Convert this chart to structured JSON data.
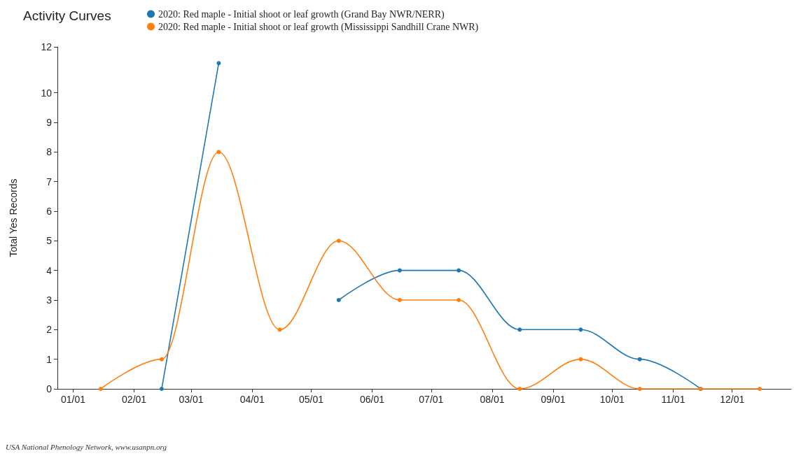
{
  "chart_data": {
    "type": "line",
    "title": "Activity Curves",
    "ylabel": "Total Yes Records",
    "x": [
      "2020-01-15",
      "2020-02-15",
      "2020-03-15",
      "2020-04-15",
      "2020-05-15",
      "2020-06-15",
      "2020-07-15",
      "2020-08-15",
      "2020-09-15",
      "2020-10-15",
      "2020-11-15",
      "2020-12-15"
    ],
    "series": [
      {
        "name": "2020: Red maple - Initial shoot or leaf growth (Grand Bay NWR/NERR)",
        "color": "#1f77b4",
        "values": [
          null,
          0,
          11,
          null,
          3,
          4,
          4,
          2,
          2,
          1,
          0,
          null
        ]
      },
      {
        "name": "2020: Red maple - Initial shoot or leaf growth (Mississippi Sandhill Crane NWR)",
        "color": "#ff7f0e",
        "values": [
          0,
          1,
          8,
          2,
          5,
          3,
          3,
          0,
          1,
          0,
          0,
          0
        ]
      }
    ],
    "xlim": [
      "2019-12-24",
      "2020-12-31"
    ],
    "xticks": [
      {
        "value": "2020-01-01",
        "label": "01/01"
      },
      {
        "value": "2020-02-01",
        "label": "02/01"
      },
      {
        "value": "2020-03-01",
        "label": "03/01"
      },
      {
        "value": "2020-04-01",
        "label": "04/01"
      },
      {
        "value": "2020-05-01",
        "label": "05/01"
      },
      {
        "value": "2020-06-01",
        "label": "06/01"
      },
      {
        "value": "2020-07-01",
        "label": "07/01"
      },
      {
        "value": "2020-08-01",
        "label": "08/01"
      },
      {
        "value": "2020-09-01",
        "label": "09/01"
      },
      {
        "value": "2020-10-01",
        "label": "10/01"
      },
      {
        "value": "2020-11-01",
        "label": "11/01"
      },
      {
        "value": "2020-12-01",
        "label": "12/01"
      }
    ],
    "ylim": [
      0,
      11.55
    ],
    "yticks": [
      0,
      1,
      2,
      3,
      4,
      5,
      6,
      7,
      8,
      9,
      10,
      {
        "value": 11.55,
        "label": "12"
      }
    ],
    "grid": false,
    "legend": "top",
    "marker": "circle",
    "line_style": "solid",
    "annotations": [
      "USA National Phenology Network, www.usanpn.org"
    ]
  }
}
